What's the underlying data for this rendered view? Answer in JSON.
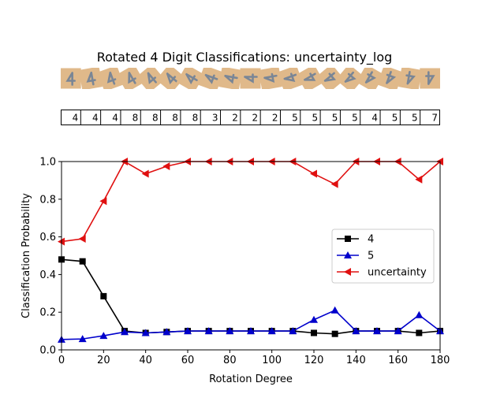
{
  "title": "Rotated 4 Digit Classifications: uncertainty_log",
  "predicted_labels": [
    "4",
    "4",
    "4",
    "8",
    "8",
    "8",
    "8",
    "3",
    "2",
    "2",
    "2",
    "5",
    "5",
    "5",
    "5",
    "4",
    "5",
    "5",
    "7"
  ],
  "colors": {
    "tile": "#e0b98a",
    "digit": "#7a8696",
    "black": "#000000",
    "blue": "#0000cc",
    "red": "#e01010"
  },
  "chart_data": {
    "type": "line",
    "xlabel": "Rotation Degree",
    "ylabel": "Classification Probability",
    "xlim": [
      0,
      180
    ],
    "ylim": [
      0,
      1
    ],
    "xticks": [
      0,
      20,
      40,
      60,
      80,
      100,
      120,
      140,
      160,
      180
    ],
    "yticks": [
      0.0,
      0.2,
      0.4,
      0.6,
      0.8,
      1.0
    ],
    "ytick_labels": [
      "0.0",
      "0.2",
      "0.4",
      "0.6",
      "0.8",
      "1.0"
    ],
    "x": [
      0,
      10,
      20,
      30,
      40,
      50,
      60,
      70,
      80,
      90,
      100,
      110,
      120,
      130,
      140,
      150,
      160,
      170,
      180
    ],
    "grid": false,
    "legend_position": "center-right",
    "series": [
      {
        "name": "4",
        "color": "#000000",
        "marker": "square",
        "values": [
          0.48,
          0.47,
          0.285,
          0.1,
          0.09,
          0.095,
          0.1,
          0.1,
          0.1,
          0.1,
          0.1,
          0.1,
          0.09,
          0.085,
          0.1,
          0.1,
          0.1,
          0.09,
          0.1
        ]
      },
      {
        "name": "5",
        "color": "#0000cc",
        "marker": "triangle-up",
        "values": [
          0.055,
          0.058,
          0.075,
          0.095,
          0.09,
          0.095,
          0.1,
          0.1,
          0.1,
          0.1,
          0.1,
          0.1,
          0.16,
          0.21,
          0.1,
          0.1,
          0.1,
          0.185,
          0.1
        ]
      },
      {
        "name": "uncertainty",
        "color": "#e01010",
        "marker": "triangle-left",
        "values": [
          0.575,
          0.59,
          0.79,
          1.0,
          0.935,
          0.975,
          1.0,
          1.0,
          1.0,
          1.0,
          1.0,
          1.0,
          0.935,
          0.88,
          1.0,
          1.0,
          1.0,
          0.905,
          1.0
        ]
      }
    ]
  }
}
